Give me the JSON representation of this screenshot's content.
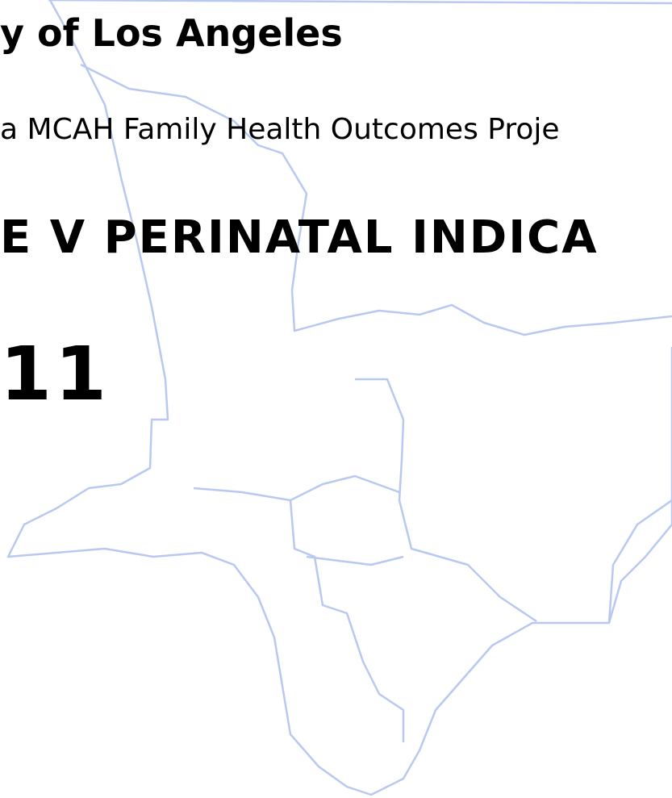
{
  "header": {
    "title": "y of Los Angeles",
    "subtitle": "a MCAH Family Health Outcomes Proje",
    "heading": "E V PERINATAL INDICA",
    "year": "11"
  }
}
